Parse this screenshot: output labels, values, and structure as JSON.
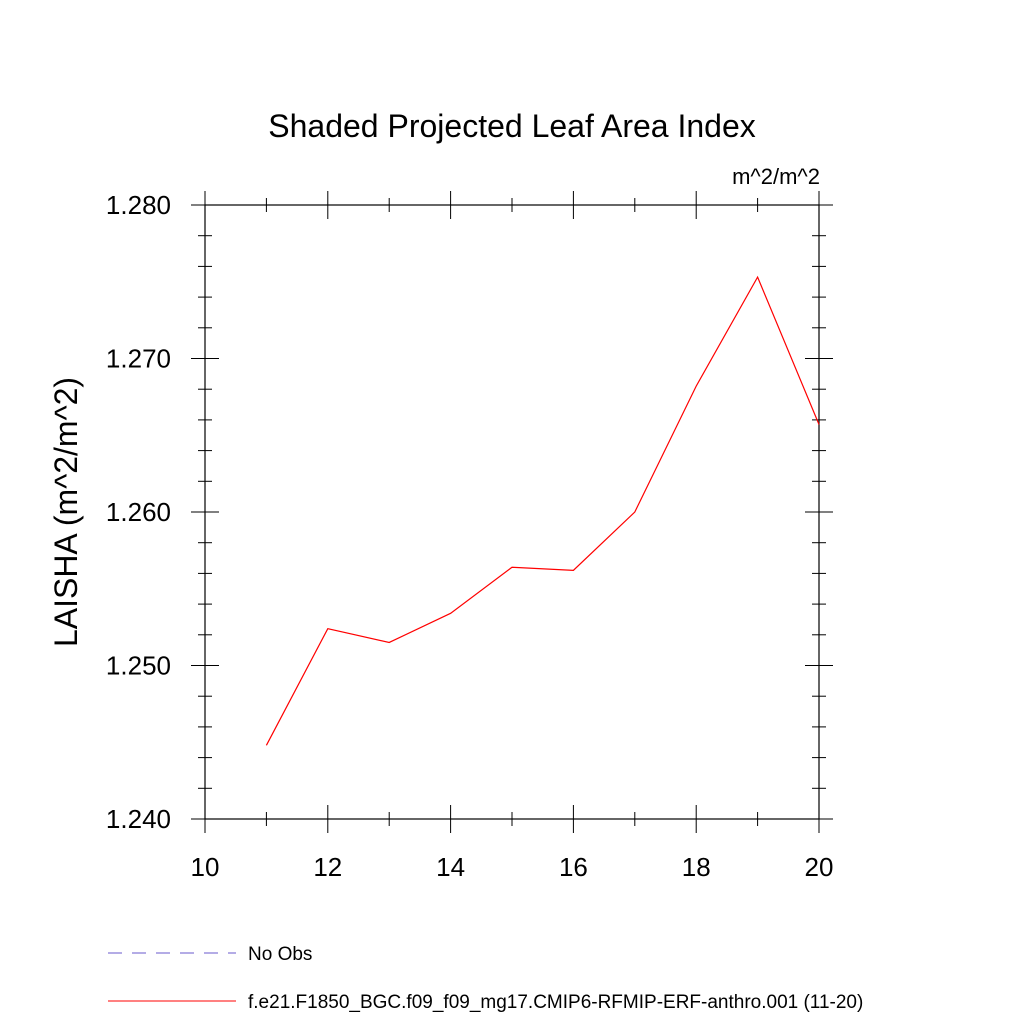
{
  "chart_data": {
    "type": "line",
    "title": "Shaded Projected Leaf Area Index",
    "units_label": "m^2/m^2",
    "ylabel": "LAISHA  (m^2/m^2)",
    "xlabel": "",
    "xlim": [
      10,
      20
    ],
    "ylim": [
      1.24,
      1.28
    ],
    "x_ticks": [
      10,
      12,
      14,
      16,
      18,
      20
    ],
    "y_ticks": [
      1.24,
      1.25,
      1.26,
      1.27,
      1.28
    ],
    "x_tick_labels": [
      "10",
      "12",
      "14",
      "16",
      "18",
      "20"
    ],
    "y_tick_labels": [
      "1.240",
      "1.250",
      "1.260",
      "1.270",
      "1.280"
    ],
    "grid": false,
    "series": [
      {
        "name": "f.e21.F1850_BGC.f09_f09_mg17.CMIP6-RFMIP-ERF-anthro.001 (11-20)",
        "color": "#ff0000",
        "dash": "solid",
        "x": [
          11,
          12,
          13,
          14,
          15,
          16,
          17,
          18,
          19,
          20
        ],
        "values": [
          1.2448,
          1.2524,
          1.2515,
          1.2534,
          1.2564,
          1.2562,
          1.26,
          1.2682,
          1.2753,
          1.2657
        ]
      }
    ],
    "legend": {
      "placement": "bottom-left",
      "entries": [
        {
          "label": "No Obs",
          "color": "#6a5acd",
          "dash": "dashed"
        },
        {
          "label": "f.e21.F1850_BGC.f09_f09_mg17.CMIP6-RFMIP-ERF-anthro.001 (11-20)",
          "color": "#ff0000",
          "dash": "solid"
        }
      ]
    }
  }
}
